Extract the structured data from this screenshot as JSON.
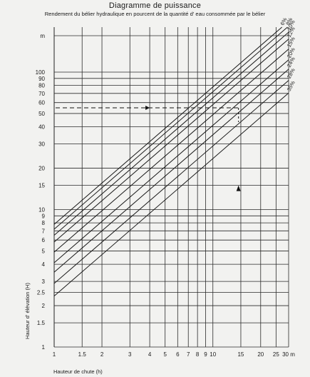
{
  "header": {
    "title": "Diagramme de puissance",
    "subtitle": "Rendement du bélier hydraulique en pourcent de la quantité d' eau consommée par le bélier"
  },
  "chart_data": {
    "type": "line",
    "title": "Diagramme de puissance",
    "subtitle": "Rendement du bélier hydraulique en pourcent de la quantité d' eau consommée par le bélier",
    "xlabel": "Hauteur de chute (h)",
    "ylabel": "Hauteur d' élévation (H)",
    "x_scale": "log",
    "y_scale": "log",
    "xlim": [
      1,
      30
    ],
    "ylim": [
      1,
      200
    ],
    "x_ticks": [
      1,
      1.5,
      2,
      3,
      4,
      5,
      6,
      7,
      8,
      9,
      10,
      15,
      20,
      25,
      30
    ],
    "x_tick_labels": [
      "1",
      "1.5",
      "2",
      "3",
      "4",
      "5",
      "6",
      "7",
      "8",
      "9",
      "10",
      "15",
      "20",
      "25",
      "30 m"
    ],
    "y_ticks": [
      1,
      1.5,
      2,
      2.5,
      3,
      4,
      5,
      6,
      7,
      8,
      9,
      10,
      15,
      20,
      30,
      40,
      50,
      60,
      70,
      80,
      90,
      100,
      200
    ],
    "y_tick_labels": [
      "1",
      "1.5",
      "2",
      "2.5",
      "3",
      "4",
      "5",
      "6",
      "7",
      "8",
      "9",
      "10",
      "15",
      "20",
      "30",
      "40",
      "50",
      "60",
      "70",
      "80",
      "90",
      "100",
      "m"
    ],
    "grid": true,
    "series": [
      {
        "name": "6%",
        "label_text": "6%",
        "k": 7.8
      },
      {
        "name": "8%",
        "label_text": "8%",
        "k": 7.2
      },
      {
        "name": "10%",
        "label_text": "10%",
        "k": 6.5
      },
      {
        "name": "12%",
        "label_text": "12%",
        "k": 5.8
      },
      {
        "name": "15%",
        "label_text": "15%",
        "k": 4.9
      },
      {
        "name": "20%",
        "label_text": "20%",
        "k": 4.1
      },
      {
        "name": "24%",
        "label_text": "24%",
        "k": 3.5
      },
      {
        "name": "28%",
        "label_text": "28%",
        "k": 2.9
      },
      {
        "name": "35%",
        "label_text": "35%",
        "k": 2.35
      }
    ],
    "annotation": {
      "example_h": 14.5,
      "example_H": 55
    }
  }
}
